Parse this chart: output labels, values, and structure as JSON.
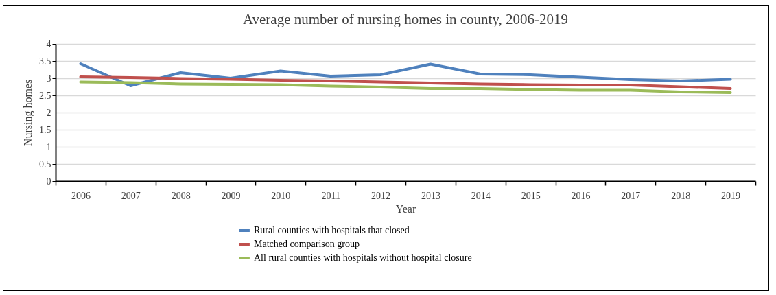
{
  "chart_data": {
    "type": "line",
    "title": "Average number of nursing homes in county, 2006-2019",
    "xlabel": "Year",
    "ylabel": "Nursing homes",
    "categories": [
      "2006",
      "2007",
      "2008",
      "2009",
      "2010",
      "2011",
      "2012",
      "2013",
      "2014",
      "2015",
      "2016",
      "2017",
      "2018",
      "2019"
    ],
    "series": [
      {
        "name": "Rural counties with hospitals that closed",
        "color": "#4f81bd",
        "values": [
          3.42,
          2.78,
          3.16,
          3.0,
          3.21,
          3.06,
          3.1,
          3.41,
          3.12,
          3.1,
          3.03,
          2.96,
          2.92,
          2.97
        ]
      },
      {
        "name": "Matched comparison group",
        "color": "#c0504d",
        "values": [
          3.04,
          3.02,
          2.99,
          2.97,
          2.94,
          2.92,
          2.89,
          2.86,
          2.83,
          2.81,
          2.8,
          2.8,
          2.75,
          2.7
        ]
      },
      {
        "name": "All rural counties with hospitals without hospital closure",
        "color": "#9bbb59",
        "values": [
          2.89,
          2.87,
          2.83,
          2.82,
          2.81,
          2.77,
          2.74,
          2.7,
          2.7,
          2.67,
          2.65,
          2.65,
          2.6,
          2.58
        ]
      }
    ],
    "ylim": [
      0,
      4
    ],
    "yticks": [
      0,
      0.5,
      1,
      1.5,
      2,
      2.5,
      3,
      3.5,
      4
    ],
    "grid": "y",
    "legend": "bottom",
    "marker": "none",
    "line_style": "solid"
  }
}
